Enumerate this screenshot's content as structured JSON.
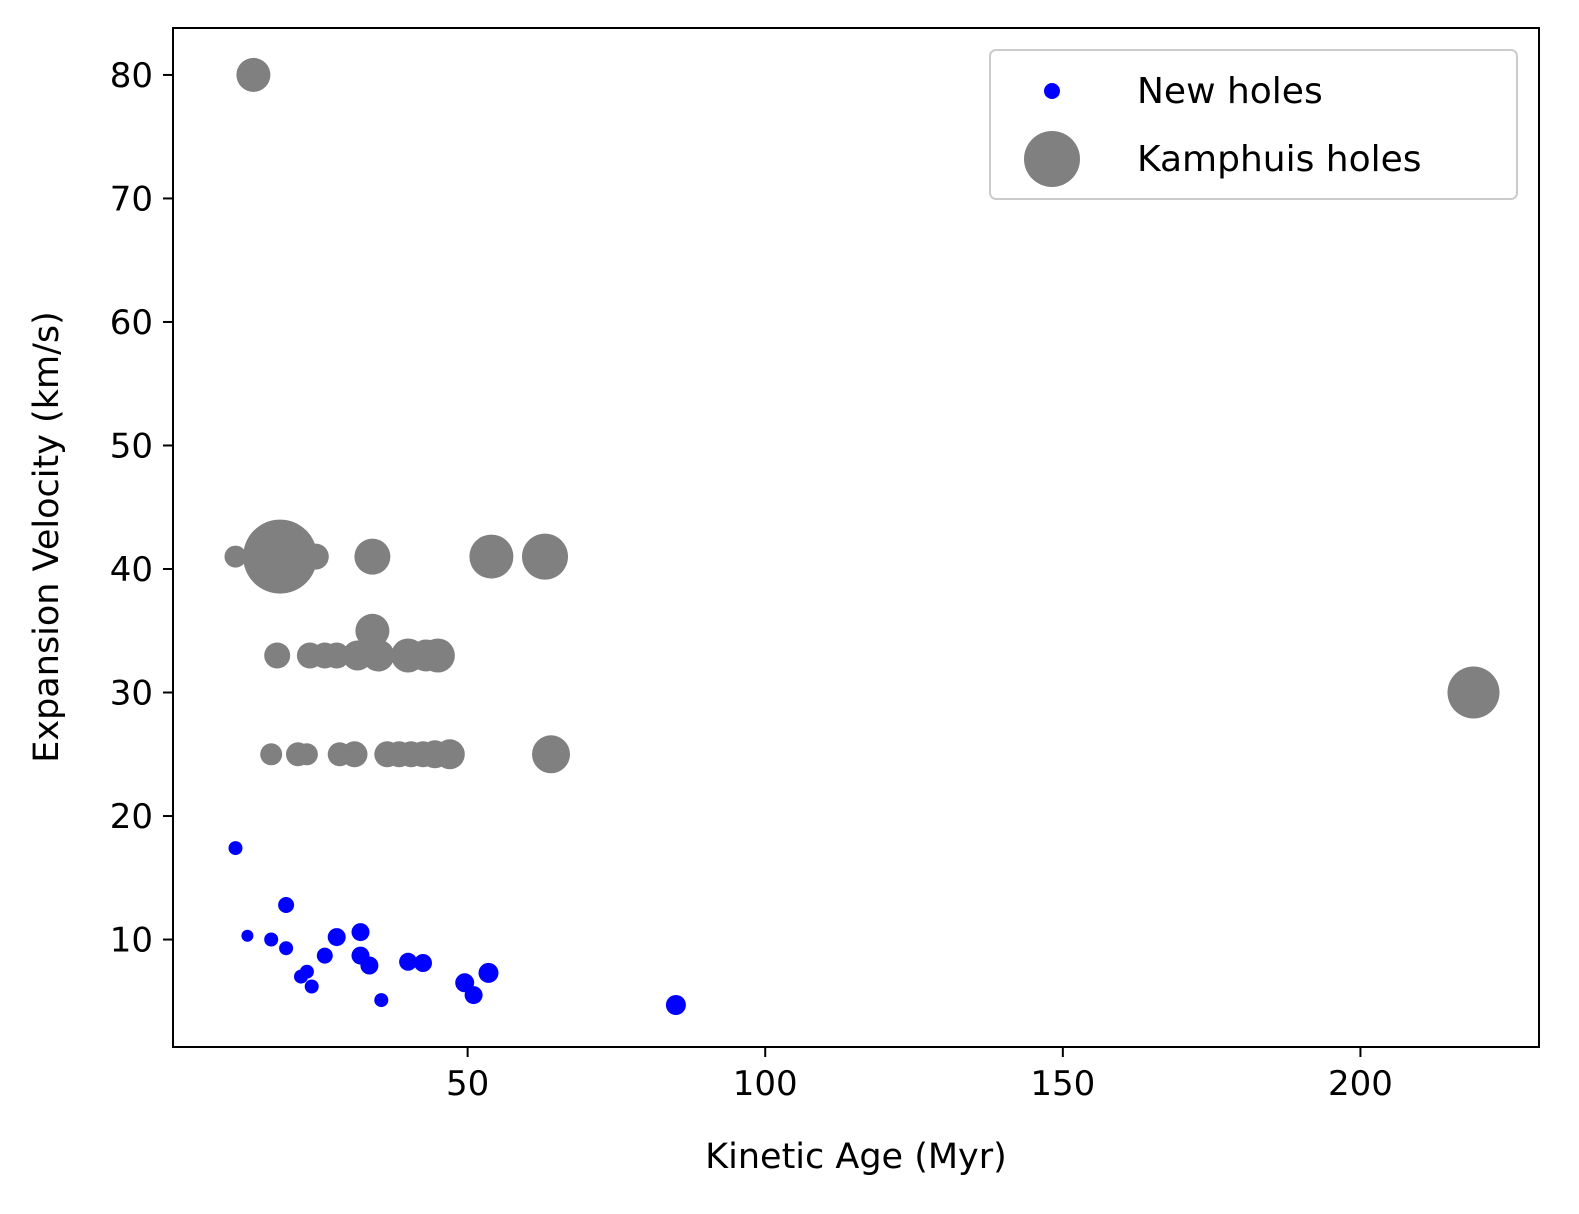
{
  "chart_data": {
    "type": "scatter",
    "xlabel": "Kinetic Age (Myr)",
    "ylabel": "Expansion Velocity (km/s)",
    "xlim": [
      0.5,
      230
    ],
    "ylim": [
      1.3,
      83.8
    ],
    "xticks": [
      50,
      100,
      150,
      200
    ],
    "yticks": [
      10,
      20,
      30,
      40,
      50,
      60,
      70,
      80
    ],
    "grid": false,
    "legend_position": "top-right",
    "series": [
      {
        "name": "New holes",
        "color": "#0000ff",
        "points": [
          {
            "x": 11,
            "y": 17.4,
            "size": 14
          },
          {
            "x": 13,
            "y": 10.3,
            "size": 12
          },
          {
            "x": 19.5,
            "y": 12.8,
            "size": 16
          },
          {
            "x": 17,
            "y": 10.0,
            "size": 14
          },
          {
            "x": 19.5,
            "y": 9.3,
            "size": 14
          },
          {
            "x": 22,
            "y": 7.0,
            "size": 14
          },
          {
            "x": 23,
            "y": 7.4,
            "size": 14
          },
          {
            "x": 23.8,
            "y": 6.2,
            "size": 14
          },
          {
            "x": 26,
            "y": 8.7,
            "size": 16
          },
          {
            "x": 28,
            "y": 10.2,
            "size": 18
          },
          {
            "x": 32,
            "y": 10.6,
            "size": 18
          },
          {
            "x": 32,
            "y": 8.7,
            "size": 18
          },
          {
            "x": 33.5,
            "y": 7.9,
            "size": 18
          },
          {
            "x": 35.5,
            "y": 5.1,
            "size": 14
          },
          {
            "x": 40,
            "y": 8.2,
            "size": 18
          },
          {
            "x": 42.5,
            "y": 8.1,
            "size": 18
          },
          {
            "x": 49.5,
            "y": 6.5,
            "size": 19
          },
          {
            "x": 51,
            "y": 5.5,
            "size": 18
          },
          {
            "x": 53.5,
            "y": 7.3,
            "size": 20
          },
          {
            "x": 85,
            "y": 4.7,
            "size": 20
          }
        ]
      },
      {
        "name": "Kamphuis holes",
        "color": "#808080",
        "points": [
          {
            "x": 14,
            "y": 80,
            "size": 34
          },
          {
            "x": 11,
            "y": 41,
            "size": 22
          },
          {
            "x": 18.5,
            "y": 41,
            "size": 74
          },
          {
            "x": 24.5,
            "y": 41,
            "size": 26
          },
          {
            "x": 34,
            "y": 41,
            "size": 36
          },
          {
            "x": 54,
            "y": 41,
            "size": 44
          },
          {
            "x": 63,
            "y": 41,
            "size": 46
          },
          {
            "x": 34,
            "y": 35,
            "size": 34
          },
          {
            "x": 18,
            "y": 33,
            "size": 26
          },
          {
            "x": 23.5,
            "y": 33,
            "size": 26
          },
          {
            "x": 26,
            "y": 33,
            "size": 26
          },
          {
            "x": 28,
            "y": 33,
            "size": 26
          },
          {
            "x": 31.5,
            "y": 33,
            "size": 30
          },
          {
            "x": 35,
            "y": 33,
            "size": 32
          },
          {
            "x": 40,
            "y": 33,
            "size": 34
          },
          {
            "x": 43,
            "y": 33,
            "size": 32
          },
          {
            "x": 45,
            "y": 33,
            "size": 34
          },
          {
            "x": 17,
            "y": 25,
            "size": 22
          },
          {
            "x": 21.5,
            "y": 25,
            "size": 24
          },
          {
            "x": 23,
            "y": 25,
            "size": 22
          },
          {
            "x": 28.5,
            "y": 25,
            "size": 24
          },
          {
            "x": 31,
            "y": 25,
            "size": 26
          },
          {
            "x": 36.5,
            "y": 25,
            "size": 26
          },
          {
            "x": 38.5,
            "y": 25,
            "size": 26
          },
          {
            "x": 40.5,
            "y": 25,
            "size": 26
          },
          {
            "x": 42.5,
            "y": 25,
            "size": 26
          },
          {
            "x": 44.5,
            "y": 25,
            "size": 28
          },
          {
            "x": 47,
            "y": 25,
            "size": 30
          },
          {
            "x": 64,
            "y": 25,
            "size": 38
          },
          {
            "x": 219,
            "y": 30,
            "size": 52
          }
        ]
      }
    ]
  }
}
